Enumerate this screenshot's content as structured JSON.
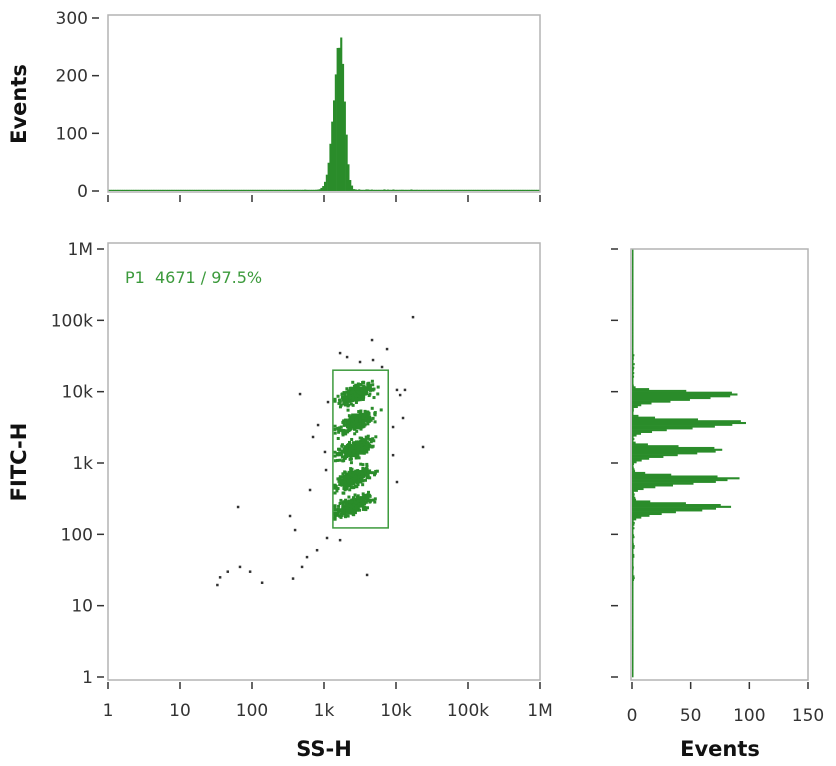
{
  "chart_data": [
    {
      "id": "top-histogram",
      "type": "histogram",
      "xlabel": "",
      "ylabel": "Events",
      "x_scale": "log",
      "xlim": [
        1,
        1000000
      ],
      "ylim": [
        0,
        300
      ],
      "y_ticks": [
        "0",
        "100",
        "200",
        "300"
      ],
      "distribution": {
        "center": 1700,
        "log_sd": 0.07,
        "peak": 280,
        "right_tail_to": 8000
      }
    },
    {
      "id": "scatter",
      "type": "scatter",
      "xlabel": "SS-H",
      "ylabel": "FITC-H",
      "x_scale": "log",
      "y_scale": "log",
      "xlim": [
        1,
        1000000
      ],
      "ylim": [
        1,
        1000000
      ],
      "x_ticks": [
        "1",
        "10",
        "100",
        "1k",
        "10k",
        "100k",
        "1M"
      ],
      "y_ticks": [
        "1",
        "10",
        "100",
        "1k",
        "10k",
        "100k",
        "1M"
      ],
      "gate": {
        "name": "P1",
        "count": "4671",
        "percent": "97.5%",
        "label": "P1  4671 / 97.5%",
        "x_range": [
          1330,
          7800
        ],
        "y_range": [
          123,
          20000
        ]
      },
      "clusters": [
        {
          "x_center": 2800,
          "y_center": 9300,
          "events": 930
        },
        {
          "x_center": 2800,
          "y_center": 3750,
          "events": 960
        },
        {
          "x_center": 2700,
          "y_center": 1570,
          "events": 920
        },
        {
          "x_center": 2600,
          "y_center": 615,
          "events": 950
        },
        {
          "x_center": 2500,
          "y_center": 250,
          "events": 911
        }
      ],
      "outliers": [
        [
          17200,
          111000
        ],
        [
          4640,
          53000
        ],
        [
          1670,
          34800
        ],
        [
          7500,
          39600
        ],
        [
          464,
          9270
        ],
        [
          1135,
          7160
        ],
        [
          826,
          3410
        ],
        [
          703,
          2320
        ],
        [
          1030,
          1430
        ],
        [
          1066,
          798
        ],
        [
          23700,
          1680
        ],
        [
          12500,
          4280
        ],
        [
          9090,
          1290
        ],
        [
          10300,
          542
        ],
        [
          64,
          242
        ],
        [
          337,
          181
        ],
        [
          396,
          115
        ],
        [
          639,
          419
        ],
        [
          580,
          48
        ],
        [
          800,
          60
        ],
        [
          495,
          35
        ],
        [
          371,
          24
        ],
        [
          3960,
          27
        ],
        [
          36,
          25
        ],
        [
          46,
          30
        ],
        [
          68,
          35
        ],
        [
          94,
          30
        ],
        [
          138,
          21
        ],
        [
          1100,
          89
        ],
        [
          1670,
          83
        ],
        [
          2090,
          30600
        ],
        [
          3160,
          26100
        ],
        [
          4790,
          27800
        ],
        [
          6390,
          22200
        ],
        [
          10300,
          10600
        ],
        [
          11400,
          8980
        ],
        [
          13300,
          10600
        ],
        [
          9090,
          3200
        ],
        [
          33,
          19.5
        ]
      ]
    },
    {
      "id": "right-histogram",
      "type": "histogram",
      "orientation": "horizontal",
      "xlabel": "Events",
      "y_scale": "log",
      "ylim": [
        1,
        1000000
      ],
      "xlim": [
        0,
        150
      ],
      "x_ticks": [
        "0",
        "50",
        "100",
        "150"
      ],
      "peaks": [
        {
          "center": 9300,
          "peak": 100
        },
        {
          "center": 3750,
          "peak": 108
        },
        {
          "center": 1570,
          "peak": 85
        },
        {
          "center": 615,
          "peak": 95
        },
        {
          "center": 250,
          "peak": 88
        }
      ]
    }
  ],
  "colors": {
    "fill": "#2a8c2a",
    "gate": "#3c9a3c",
    "outlier": "#333333",
    "frame": "#b4b4b4"
  }
}
